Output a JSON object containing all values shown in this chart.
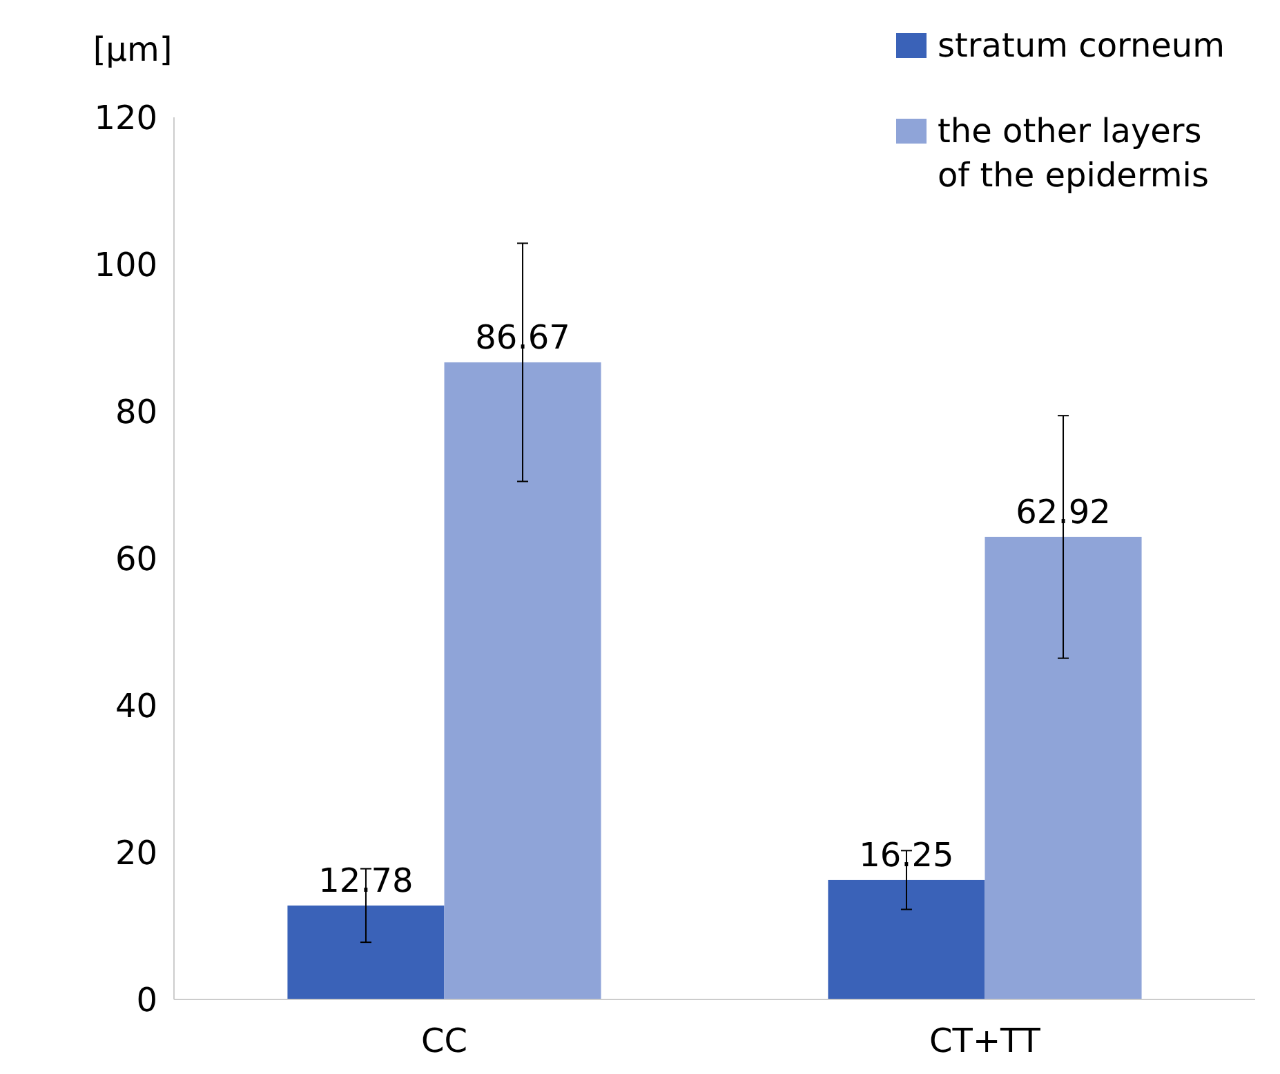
{
  "chart_data": {
    "type": "bar",
    "ylabel": "[μm]",
    "categories": [
      "CC",
      "CT+TT"
    ],
    "series": [
      {
        "name": "stratum corneum",
        "color": "#3a62b8",
        "values": [
          12.78,
          16.25
        ],
        "errors": [
          5,
          4
        ]
      },
      {
        "name": "the other layers of the epidermis",
        "color": "#8fa4d8",
        "values": [
          86.67,
          62.92
        ],
        "errors": [
          16.2,
          16.5
        ]
      }
    ],
    "ylim": [
      0,
      120
    ],
    "yticks": [
      0,
      20,
      40,
      60,
      80,
      100,
      120
    ],
    "grid": false,
    "legend": "top right",
    "data_labels": true
  }
}
